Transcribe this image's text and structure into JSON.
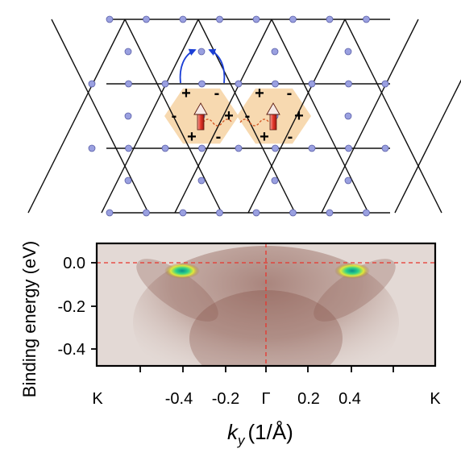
{
  "lattice": {
    "charge_plus": "+",
    "charge_minus": "-"
  },
  "plot": {
    "ylabel": "Binding energy (eV)",
    "xlabel_main": "k",
    "xlabel_sub": "y",
    "xlabel_units": "(1/Å)",
    "y_ticks": [
      "0.0",
      "-0.2",
      "-0.4"
    ],
    "x_ticks": [
      "K",
      "-0.4",
      "-0.2",
      "Γ",
      "0.2",
      "0.4",
      "K"
    ],
    "colors": {
      "fermi_level_line": "#e8342c",
      "gamma_line": "#e8342c",
      "spectral_weight": "#7a4035",
      "hot_spot": "#2dd18a",
      "hexagon_fill": "#f7d9b0",
      "lattice_node": "#9aa0e0",
      "hopping_arrow": "#1b3fd6"
    }
  }
}
